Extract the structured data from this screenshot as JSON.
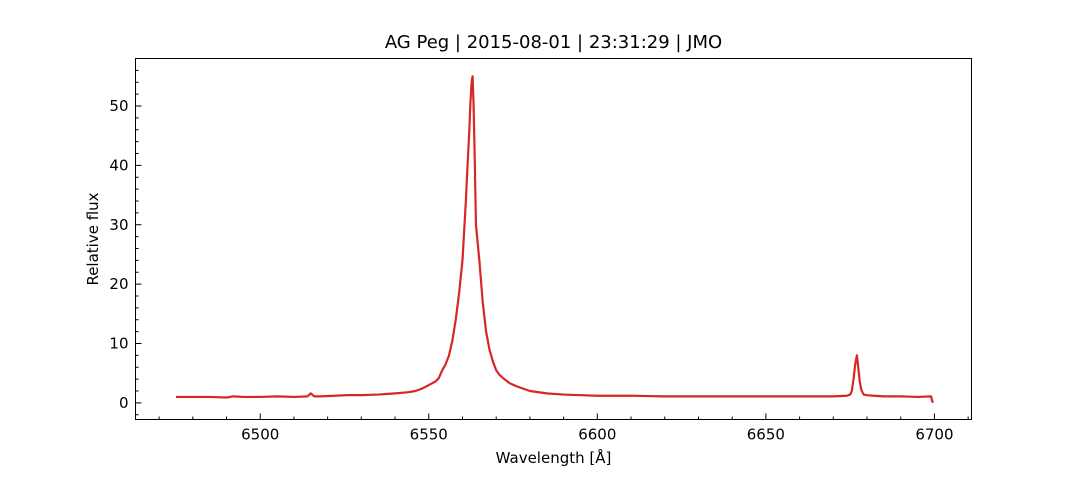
{
  "chart_data": {
    "type": "line",
    "title": "AG Peg | 2015-08-01 | 23:31:29 | JMO",
    "xlabel": "Wavelength [Å]",
    "ylabel": "Relative flux",
    "xlim": [
      6463,
      6711
    ],
    "ylim": [
      -2.8,
      58
    ],
    "xticks": [
      6500,
      6550,
      6600,
      6650,
      6700
    ],
    "xminor_step": 10,
    "yticks": [
      0,
      10,
      20,
      30,
      40,
      50
    ],
    "yminor_step": 2,
    "tick_direction": "in",
    "grid": false,
    "color": "#d62728",
    "series": [
      {
        "x": [
          6475,
          6480,
          6485,
          6490,
          6492,
          6495,
          6500,
          6505,
          6510,
          6514,
          6515,
          6516,
          6518,
          6522,
          6526,
          6530,
          6535,
          6540,
          6544,
          6546,
          6548,
          6550,
          6552,
          6553,
          6554,
          6555,
          6556,
          6557,
          6558,
          6559,
          6560,
          6560.5,
          6561,
          6561.5,
          6562,
          6562.3,
          6562.7,
          6563,
          6563.3,
          6563.6,
          6564,
          6565,
          6566,
          6567,
          6568,
          6569,
          6570,
          6571,
          6572,
          6574,
          6576,
          6578,
          6580,
          6585,
          6590,
          6600,
          6610,
          6620,
          6630,
          6640,
          6650,
          6660,
          6670,
          6674,
          6675,
          6675.5,
          6676,
          6676.5,
          6677,
          6677.4,
          6677.8,
          6678.3,
          6679,
          6680,
          6682,
          6685,
          6690,
          6695,
          6699,
          6699.4,
          6699.7
        ],
        "y": [
          1.0,
          1.0,
          1.0,
          0.9,
          1.1,
          1.0,
          1.0,
          1.1,
          1.0,
          1.1,
          1.6,
          1.1,
          1.1,
          1.2,
          1.3,
          1.3,
          1.4,
          1.6,
          1.8,
          2.0,
          2.4,
          3.0,
          3.6,
          4.2,
          5.5,
          6.5,
          8.0,
          10.5,
          14.0,
          18.5,
          24.0,
          29.0,
          34.0,
          40.0,
          45.5,
          50.0,
          54.0,
          55.0,
          50.0,
          42.0,
          30.0,
          24.0,
          17.0,
          12.0,
          9.0,
          7.0,
          5.5,
          4.7,
          4.2,
          3.3,
          2.8,
          2.4,
          2.0,
          1.6,
          1.4,
          1.2,
          1.2,
          1.1,
          1.1,
          1.1,
          1.1,
          1.1,
          1.1,
          1.2,
          1.4,
          2.0,
          4.0,
          6.5,
          8.0,
          6.0,
          3.8,
          2.2,
          1.4,
          1.3,
          1.2,
          1.1,
          1.1,
          1.0,
          1.1,
          0.2,
          0.1
        ]
      }
    ]
  }
}
